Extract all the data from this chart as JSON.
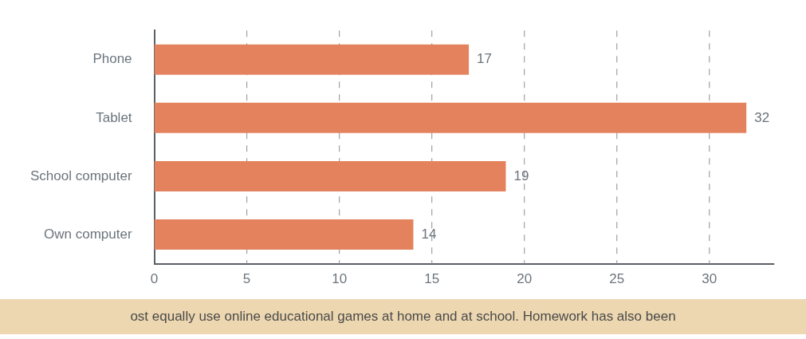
{
  "chart_data": {
    "type": "bar",
    "orientation": "horizontal",
    "categories": [
      "Phone",
      "Tablet",
      "School computer",
      "Own computer"
    ],
    "values": [
      17,
      32,
      19,
      14
    ],
    "color": "#e5825e",
    "xlim": [
      0,
      33.5
    ],
    "xticks": [
      0,
      5,
      10,
      15,
      20,
      25,
      30
    ],
    "grid": "x",
    "data_labels": true,
    "annotations": [
      "ost equally use online educational games at home and at school. Homework has also been"
    ]
  }
}
